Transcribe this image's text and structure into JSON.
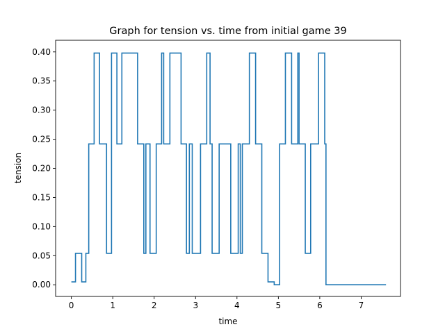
{
  "chart_data": {
    "type": "line",
    "title": "Graph for tension vs. time from initial game 39",
    "xlabel": "time",
    "ylabel": "tension",
    "xlim": [
      -0.38,
      7.95
    ],
    "ylim": [
      -0.02,
      0.42
    ],
    "xticks": [
      0,
      1,
      2,
      3,
      4,
      5,
      6,
      7
    ],
    "yticks": [
      0.0,
      0.05,
      0.1,
      0.15,
      0.2,
      0.25,
      0.3,
      0.35,
      0.4
    ],
    "ytick_labels": [
      "0.00",
      "0.05",
      "0.10",
      "0.15",
      "0.20",
      "0.25",
      "0.30",
      "0.35",
      "0.40"
    ],
    "grid": false,
    "line_color": "#1f77b4",
    "series": [
      {
        "step": "post",
        "x": [
          0.0,
          0.1,
          0.25,
          0.35,
          0.42,
          0.55,
          0.68,
          0.85,
          0.97,
          1.1,
          1.22,
          1.35,
          1.6,
          1.75,
          1.78,
          1.8,
          1.9,
          2.05,
          2.18,
          2.2,
          2.23,
          2.38,
          2.65,
          2.78,
          2.8,
          2.85,
          2.92,
          3.12,
          3.27,
          3.35,
          3.4,
          3.57,
          3.85,
          3.98,
          4.03,
          4.08,
          4.13,
          4.15,
          4.3,
          4.45,
          4.6,
          4.75,
          4.9,
          5.03,
          5.17,
          5.32,
          5.47,
          5.48,
          5.5,
          5.52,
          5.65,
          5.78,
          5.97,
          6.12,
          6.15,
          7.6
        ],
        "y": [
          0.005,
          0.054,
          0.005,
          0.054,
          0.242,
          0.398,
          0.242,
          0.054,
          0.398,
          0.242,
          0.398,
          0.398,
          0.242,
          0.054,
          0.054,
          0.242,
          0.054,
          0.242,
          0.398,
          0.398,
          0.242,
          0.398,
          0.242,
          0.054,
          0.054,
          0.242,
          0.054,
          0.242,
          0.398,
          0.242,
          0.054,
          0.242,
          0.054,
          0.054,
          0.242,
          0.054,
          0.242,
          0.242,
          0.398,
          0.242,
          0.054,
          0.005,
          0.0,
          0.242,
          0.398,
          0.242,
          0.398,
          0.398,
          0.242,
          0.242,
          0.054,
          0.242,
          0.398,
          0.242,
          0.0,
          0.0
        ]
      }
    ]
  }
}
